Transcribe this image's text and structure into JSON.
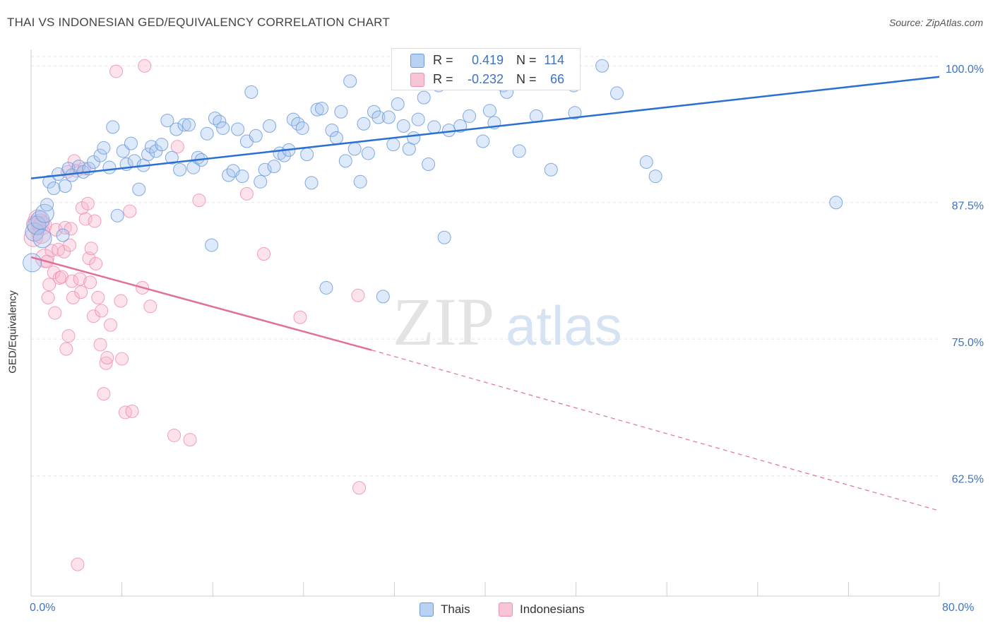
{
  "header": {
    "title": "THAI VS INDONESIAN GED/EQUIVALENCY CORRELATION CHART",
    "source": "Source: ZipAtlas.com"
  },
  "watermark": {
    "zip": "ZIP",
    "atlas": "atlas"
  },
  "stats": {
    "thais": {
      "r_label": "R =",
      "r_value": "0.419",
      "n_label": "N =",
      "n_value": "114"
    },
    "indonesians": {
      "r_label": "R =",
      "r_value": "-0.232",
      "n_label": "N =",
      "n_value": "66"
    }
  },
  "colors": {
    "thais": "#6b9bdc",
    "thais_line": "#2a6fd1",
    "indonesians": "#ee8fb0",
    "indonesians_line": "#e0709a",
    "axis_text": "#3d73c4"
  },
  "chart_data": {
    "type": "scatter",
    "title": "THAI VS INDONESIAN GED/EQUIVALENCY CORRELATION CHART",
    "xlabel": "",
    "ylabel": "GED/Equivalency",
    "xlim": [
      0,
      80
    ],
    "ylim": [
      50,
      100
    ],
    "x_tick_labels": [
      "0.0%",
      "80.0%"
    ],
    "y_ticks": [
      62.5,
      75.0,
      87.5,
      100.0
    ],
    "y_tick_labels": [
      "62.5%",
      "75.0%",
      "87.5%",
      "100.0%"
    ],
    "grid": true,
    "legend": [
      "Thais",
      "Indonesians"
    ],
    "legend_position": "bottom",
    "series": [
      {
        "name": "Thais",
        "trend": {
          "x": [
            0,
            80
          ],
          "y": [
            89.7,
            99.0
          ]
        },
        "points": [
          [
            0.1,
            82.0
          ],
          [
            0.3,
            84.8
          ],
          [
            0.5,
            85.4
          ],
          [
            0.8,
            85.9
          ],
          [
            1.0,
            84.2
          ],
          [
            1.2,
            86.5
          ],
          [
            1.4,
            87.3
          ],
          [
            1.6,
            89.4
          ],
          [
            2.0,
            88.8
          ],
          [
            2.4,
            90.1
          ],
          [
            2.8,
            84.5
          ],
          [
            3.0,
            89.0
          ],
          [
            3.3,
            90.6
          ],
          [
            3.6,
            90.0
          ],
          [
            4.2,
            90.8
          ],
          [
            4.6,
            90.3
          ],
          [
            5.1,
            90.6
          ],
          [
            5.5,
            91.2
          ],
          [
            6.1,
            91.8
          ],
          [
            6.4,
            92.5
          ],
          [
            6.9,
            90.7
          ],
          [
            7.2,
            94.4
          ],
          [
            7.6,
            86.3
          ],
          [
            8.1,
            92.2
          ],
          [
            8.4,
            91.0
          ],
          [
            8.8,
            92.9
          ],
          [
            9.1,
            91.3
          ],
          [
            9.5,
            88.7
          ],
          [
            9.9,
            90.9
          ],
          [
            10.3,
            91.9
          ],
          [
            10.6,
            92.6
          ],
          [
            11.0,
            92.2
          ],
          [
            11.5,
            92.8
          ],
          [
            12.0,
            95.0
          ],
          [
            12.4,
            91.6
          ],
          [
            12.8,
            94.2
          ],
          [
            13.1,
            90.5
          ],
          [
            13.5,
            94.6
          ],
          [
            13.9,
            94.6
          ],
          [
            14.3,
            90.7
          ],
          [
            14.7,
            91.6
          ],
          [
            15.0,
            91.4
          ],
          [
            15.5,
            93.8
          ],
          [
            15.9,
            83.6
          ],
          [
            16.2,
            95.2
          ],
          [
            16.6,
            94.9
          ],
          [
            16.9,
            94.3
          ],
          [
            17.4,
            90.0
          ],
          [
            17.8,
            90.4
          ],
          [
            18.2,
            94.2
          ],
          [
            18.6,
            89.9
          ],
          [
            19.0,
            93.1
          ],
          [
            19.4,
            97.6
          ],
          [
            19.8,
            93.6
          ],
          [
            20.2,
            89.4
          ],
          [
            20.6,
            90.5
          ],
          [
            21.0,
            94.5
          ],
          [
            21.4,
            90.8
          ],
          [
            21.9,
            92.0
          ],
          [
            22.3,
            91.8
          ],
          [
            22.7,
            92.3
          ],
          [
            23.1,
            95.1
          ],
          [
            23.5,
            94.7
          ],
          [
            23.9,
            94.3
          ],
          [
            24.3,
            91.9
          ],
          [
            24.7,
            89.3
          ],
          [
            25.2,
            96.0
          ],
          [
            25.6,
            96.1
          ],
          [
            26.0,
            79.7
          ],
          [
            26.5,
            94.1
          ],
          [
            26.9,
            93.4
          ],
          [
            27.3,
            95.8
          ],
          [
            27.7,
            91.3
          ],
          [
            28.1,
            98.6
          ],
          [
            28.5,
            92.4
          ],
          [
            29.0,
            89.4
          ],
          [
            29.3,
            94.7
          ],
          [
            29.7,
            92.0
          ],
          [
            30.2,
            95.8
          ],
          [
            30.6,
            95.3
          ],
          [
            31.0,
            78.9
          ],
          [
            31.5,
            95.3
          ],
          [
            31.9,
            92.8
          ],
          [
            32.3,
            96.5
          ],
          [
            32.8,
            94.5
          ],
          [
            33.3,
            92.4
          ],
          [
            33.7,
            93.4
          ],
          [
            34.1,
            95.1
          ],
          [
            34.6,
            97.1
          ],
          [
            35.0,
            91.0
          ],
          [
            35.5,
            94.4
          ],
          [
            35.9,
            98.2
          ],
          [
            36.4,
            84.3
          ],
          [
            36.8,
            94.1
          ],
          [
            37.3,
            98.5
          ],
          [
            37.8,
            94.5
          ],
          [
            38.6,
            95.4
          ],
          [
            39.2,
            98.7
          ],
          [
            39.8,
            93.1
          ],
          [
            40.4,
            95.9
          ],
          [
            40.8,
            94.8
          ],
          [
            41.6,
            98.2
          ],
          [
            41.9,
            97.6
          ],
          [
            41.5,
            99.8
          ],
          [
            43.0,
            92.2
          ],
          [
            43.9,
            98.7
          ],
          [
            44.5,
            95.4
          ],
          [
            45.8,
            90.5
          ],
          [
            47.8,
            98.2
          ],
          [
            47.9,
            95.7
          ],
          [
            50.3,
            100.0
          ],
          [
            51.6,
            97.5
          ],
          [
            54.2,
            91.2
          ],
          [
            55.0,
            89.9
          ],
          [
            70.9,
            87.5
          ]
        ]
      },
      {
        "name": "Indonesians",
        "trend": {
          "x": [
            0,
            30
          ],
          "y": [
            82.5,
            74.0
          ],
          "dashed_extension": {
            "x": [
              30,
              80
            ],
            "y": [
              74.0,
              59.3
            ]
          }
        },
        "points": [
          [
            0.2,
            84.3
          ],
          [
            0.4,
            85.5
          ],
          [
            0.6,
            86.0
          ],
          [
            0.8,
            85.6
          ],
          [
            1.0,
            85.4
          ],
          [
            1.2,
            82.4
          ],
          [
            1.4,
            82.1
          ],
          [
            1.5,
            78.8
          ],
          [
            1.6,
            80.0
          ],
          [
            1.8,
            83.1
          ],
          [
            2.0,
            81.1
          ],
          [
            2.1,
            77.4
          ],
          [
            2.2,
            85.0
          ],
          [
            2.4,
            83.2
          ],
          [
            2.5,
            80.6
          ],
          [
            2.7,
            80.7
          ],
          [
            2.9,
            83.0
          ],
          [
            3.0,
            85.2
          ],
          [
            3.1,
            74.1
          ],
          [
            3.2,
            90.3
          ],
          [
            3.3,
            75.3
          ],
          [
            3.4,
            83.6
          ],
          [
            3.5,
            85.1
          ],
          [
            3.6,
            80.3
          ],
          [
            3.7,
            78.8
          ],
          [
            3.8,
            91.3
          ],
          [
            4.0,
            90.4
          ],
          [
            4.1,
            54.4
          ],
          [
            4.3,
            80.5
          ],
          [
            4.4,
            79.3
          ],
          [
            4.5,
            87.0
          ],
          [
            4.7,
            90.6
          ],
          [
            4.8,
            86.0
          ],
          [
            5.0,
            87.4
          ],
          [
            5.1,
            82.4
          ],
          [
            5.2,
            80.2
          ],
          [
            5.3,
            83.3
          ],
          [
            5.5,
            77.1
          ],
          [
            5.6,
            85.8
          ],
          [
            5.7,
            81.9
          ],
          [
            5.9,
            78.8
          ],
          [
            6.1,
            74.5
          ],
          [
            6.2,
            77.6
          ],
          [
            6.4,
            70.0
          ],
          [
            6.6,
            72.8
          ],
          [
            6.7,
            73.3
          ],
          [
            7.0,
            76.3
          ],
          [
            7.5,
            99.5
          ],
          [
            7.9,
            78.5
          ],
          [
            8.0,
            73.2
          ],
          [
            8.3,
            68.3
          ],
          [
            8.7,
            86.7
          ],
          [
            8.9,
            68.4
          ],
          [
            9.8,
            79.7
          ],
          [
            10.0,
            100.0
          ],
          [
            10.5,
            78.0
          ],
          [
            12.6,
            66.2
          ],
          [
            12.9,
            92.6
          ],
          [
            14.0,
            65.8
          ],
          [
            14.8,
            87.7
          ],
          [
            19.0,
            88.3
          ],
          [
            20.5,
            82.8
          ],
          [
            23.7,
            77.0
          ],
          [
            28.8,
            79.0
          ],
          [
            28.9,
            61.4
          ],
          [
            0.9,
            84.6
          ]
        ]
      }
    ]
  },
  "legend_bottom": {
    "thais": "Thais",
    "indonesians": "Indonesians"
  }
}
